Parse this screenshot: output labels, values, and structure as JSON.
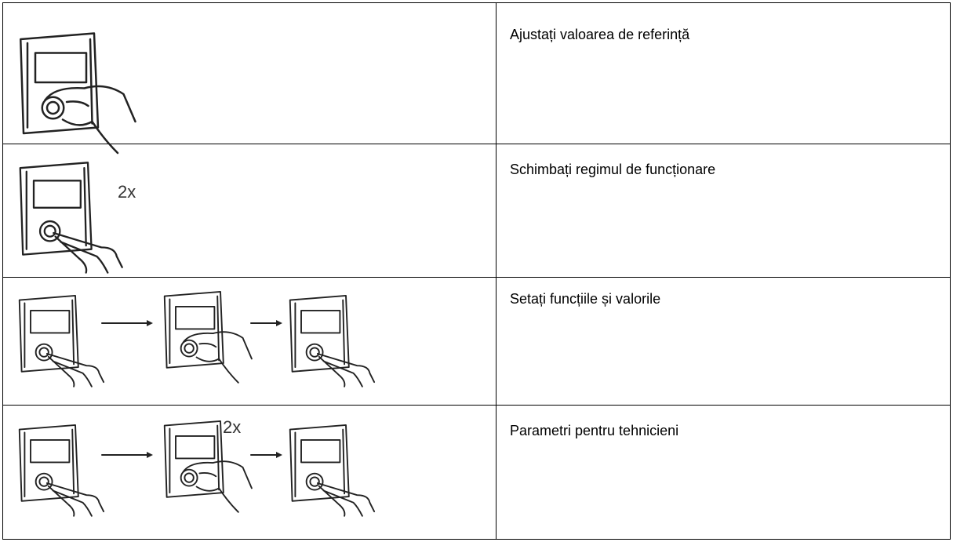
{
  "table": {
    "rows": [
      {
        "description": "Ajustați valoarea de referință"
      },
      {
        "description": "Schimbați regimul de funcționare",
        "illustration_label": "2x"
      },
      {
        "description": "Setați funcțiile și valorile"
      },
      {
        "description": "Parametri pentru tehnicieni",
        "illustration_label": "2x"
      }
    ]
  }
}
